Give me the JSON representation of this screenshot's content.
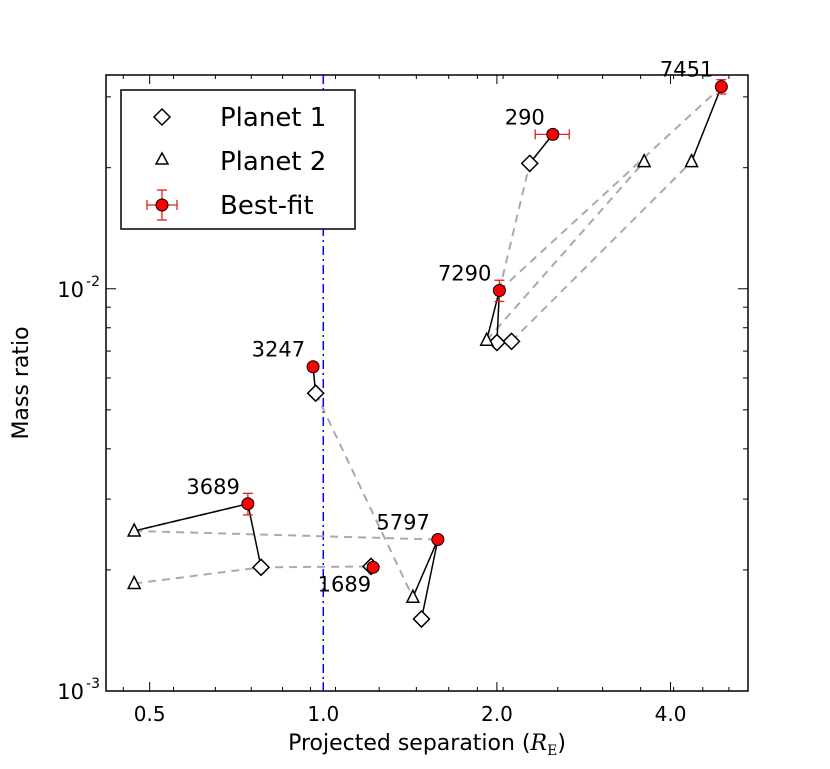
{
  "chart_data": {
    "type": "scatter",
    "xscale": "log",
    "yscale": "log",
    "xlabel": "Projected separation (",
    "xlabel_math": "R",
    "xlabel_math_sub": "E",
    "xlabel_close": ")",
    "ylabel": "Mass ratio",
    "xlim": [
      0.42,
      5.45
    ],
    "ylim": [
      0.001,
      0.034
    ],
    "xticks": [
      {
        "value": 0.5,
        "label": "0.5"
      },
      {
        "value": 1.0,
        "label": "1.0"
      },
      {
        "value": 2.0,
        "label": "2.0"
      },
      {
        "value": 4.0,
        "label": "4.0"
      }
    ],
    "yticks": [
      {
        "value": 0.001,
        "base": "10",
        "exp": "-3"
      },
      {
        "value": 0.01,
        "base": "10",
        "exp": "-2"
      }
    ],
    "reference_line": {
      "x": 1.0,
      "color": "#0000ff",
      "style": "dash-dot"
    },
    "legend": {
      "position": "top-left",
      "entries": [
        {
          "label": "Planet 1",
          "marker": "diamond"
        },
        {
          "label": "Planet 2",
          "marker": "triangle"
        },
        {
          "label": "Best-fit",
          "marker": "errorbar-circle"
        }
      ]
    },
    "colors": {
      "best_fit": "#ff0000",
      "errorbar": "#dd2222",
      "connector": "#aaaaaa",
      "link": "#000000"
    },
    "events": [
      {
        "name": "7451",
        "best": {
          "s": 4.9,
          "q": 0.0318,
          "q_err": 0.0013,
          "s_err": 0.0
        },
        "planet1": null,
        "planet2": {
          "s": 4.35,
          "q": 0.0207
        },
        "label_pos": "left-top"
      },
      {
        "name": "290",
        "best": {
          "s": 2.5,
          "q": 0.0242,
          "q_err": 0.0005,
          "s_err": 0.17
        },
        "planet1": {
          "s": 2.28,
          "q": 0.0205
        },
        "planet2": null,
        "label_pos": "left-top"
      },
      {
        "name": "7290",
        "best": {
          "s": 2.02,
          "q": 0.0099,
          "q_err": 0.0006,
          "s_err": 0.0
        },
        "planet1": {
          "s": 2.0,
          "q": 0.00735
        },
        "planet2": {
          "s": 1.92,
          "q": 0.00745
        },
        "extra_points": [
          {
            "marker": "diamond",
            "s": 2.12,
            "q": 0.0074
          },
          {
            "marker": "triangle",
            "s": 3.6,
            "q": 0.0207
          }
        ],
        "label_pos": "left-top"
      },
      {
        "name": "3247",
        "best": {
          "s": 0.96,
          "q": 0.0064,
          "q_err": 0.0,
          "s_err": 0.0
        },
        "planet1": {
          "s": 0.97,
          "q": 0.0055
        },
        "planet2": null,
        "label_pos": "left-top"
      },
      {
        "name": "3689",
        "best": {
          "s": 0.74,
          "q": 0.00292,
          "q_err": 0.00018,
          "s_err": 0.0
        },
        "planet1": {
          "s": 0.78,
          "q": 0.00203
        },
        "planet2": {
          "s": 0.47,
          "q": 0.0025
        },
        "extra_points": [
          {
            "marker": "triangle",
            "s": 0.47,
            "q": 0.00185
          }
        ],
        "label_pos": "left-top"
      },
      {
        "name": "1689",
        "best": {
          "s": 1.22,
          "q": 0.00203,
          "q_err": 0.0,
          "s_err": 0.0
        },
        "planet1": {
          "s": 1.21,
          "q": 0.00204
        },
        "planet2": null,
        "label_pos": "left-bottom"
      },
      {
        "name": "5797",
        "best": {
          "s": 1.58,
          "q": 0.00238,
          "q_err": 0.0,
          "s_err": 0.0
        },
        "planet1": {
          "s": 1.48,
          "q": 0.00151
        },
        "planet2": {
          "s": 1.43,
          "q": 0.00171
        },
        "label_pos": "left-top"
      }
    ],
    "dashed_connections": [
      [
        {
          "s": 0.74,
          "q": 0.00292
        },
        {
          "s": 0.47,
          "q": 0.0025
        }
      ],
      [
        {
          "s": 0.47,
          "q": 0.0025
        },
        {
          "s": 1.58,
          "q": 0.00238
        }
      ],
      [
        {
          "s": 0.47,
          "q": 0.00185
        },
        {
          "s": 0.78,
          "q": 0.00203
        }
      ],
      [
        {
          "s": 0.78,
          "q": 0.00203
        },
        {
          "s": 1.21,
          "q": 0.00204
        }
      ],
      [
        {
          "s": 0.97,
          "q": 0.0055
        },
        {
          "s": 1.43,
          "q": 0.00171
        }
      ],
      [
        {
          "s": 2.02,
          "q": 0.0099
        },
        {
          "s": 2.28,
          "q": 0.0205
        }
      ],
      [
        {
          "s": 2.02,
          "q": 0.0099
        },
        {
          "s": 4.9,
          "q": 0.0318
        }
      ],
      [
        {
          "s": 1.92,
          "q": 0.00745
        },
        {
          "s": 3.6,
          "q": 0.0207
        }
      ],
      [
        {
          "s": 2.12,
          "q": 0.0074
        },
        {
          "s": 4.35,
          "q": 0.0207
        }
      ]
    ]
  }
}
